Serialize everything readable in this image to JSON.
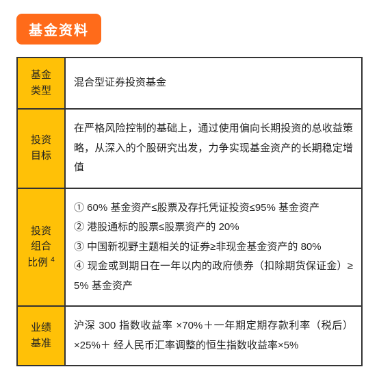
{
  "header": {
    "title": "基金资料"
  },
  "table": {
    "rows": [
      {
        "label": "基金类型",
        "content": "混合型证券投资基金"
      },
      {
        "label": "投资目标",
        "content": "在严格风险控制的基础上，通过使用偏向长期投资的总收益策略，从深入的个股研究出发，力争实现基金资产的长期稳定增值"
      },
      {
        "label": "投资组合比例",
        "label_sup": "4",
        "content": "① 60% 基金资产≤股票及存托凭证投资≤95% 基金资产\n② 港股通标的股票≤股票资产的 20%\n③ 中国新视野主题相关的证券≥非现金基金资产的 80%\n④ 现金或到期日在一年以内的政府债券（扣除期货保证金）≥ 5% 基金资产"
      },
      {
        "label": "业绩基准",
        "content": "沪深 300 指数收益率 ×70%＋一年期定期存款利率（税后）×25%＋ 经人民币汇率调整的恒生指数收益率×5%"
      }
    ],
    "colors": {
      "badge_bg": "#ff6b1a",
      "badge_text": "#ffffff",
      "label_bg": "#ffc107",
      "border": "#333333",
      "text": "#222222"
    }
  }
}
